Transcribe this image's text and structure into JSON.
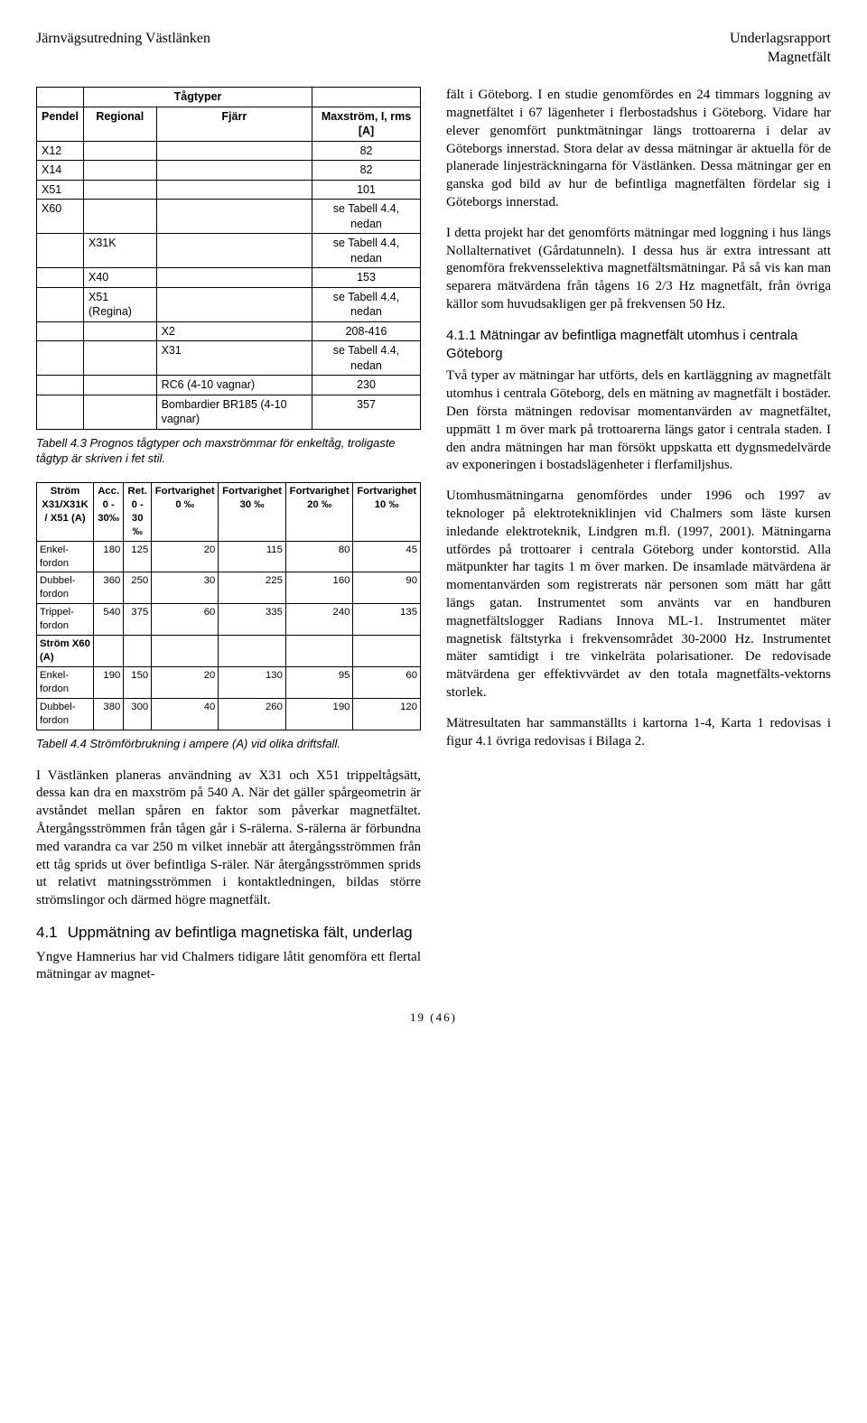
{
  "header": {
    "left": "Järnvägsutredning Västlänken",
    "right1": "Underlagsrapport",
    "right2": "Magnetfält"
  },
  "t43": {
    "title_row": [
      "",
      "Tågtyper",
      "",
      ""
    ],
    "head": [
      "Pendel",
      "Regional",
      "Fjärr",
      "Maxström, I, rms [A]"
    ],
    "rows": [
      [
        "X12",
        "",
        "",
        "82"
      ],
      [
        "X14",
        "",
        "",
        "82"
      ],
      [
        "X51",
        "",
        "",
        "101"
      ],
      [
        "X60",
        "",
        "",
        "se Tabell 4.4, nedan"
      ],
      [
        "",
        "X31K",
        "",
        "se Tabell 4.4, nedan"
      ],
      [
        "",
        "X40",
        "",
        "153"
      ],
      [
        "",
        "X51 (Regina)",
        "",
        "se Tabell 4.4, nedan"
      ],
      [
        "",
        "",
        "X2",
        "208-416"
      ],
      [
        "",
        "",
        "X31",
        "se Tabell 4.4, nedan"
      ],
      [
        "",
        "",
        "RC6 (4-10 vagnar)",
        "230"
      ],
      [
        "",
        "",
        "Bombardier BR185 (4-10 vagnar)",
        "357"
      ]
    ],
    "caption": "Tabell 4.3 Prognos tågtyper och maxströmmar för enkeltåg, troligaste tågtyp är skriven i fet stil."
  },
  "t44": {
    "head": [
      "Ström X31/X31K / X51 (A)",
      "Acc. 0 - 30‰",
      "Ret. 0 - 30 ‰",
      "Fortvarighet 0 ‰",
      "Fortvarighet 30 ‰",
      "Fortvarighet 20 ‰",
      "Fortvarighet 10 ‰"
    ],
    "rows": [
      [
        "Enkel-fordon",
        "180",
        "125",
        "20",
        "115",
        "80",
        "45"
      ],
      [
        "Dubbel-fordon",
        "360",
        "250",
        "30",
        "225",
        "160",
        "90"
      ],
      [
        "Trippel-fordon",
        "540",
        "375",
        "60",
        "335",
        "240",
        "135"
      ],
      [
        "Ström X60 (A)",
        "",
        "",
        "",
        "",
        "",
        ""
      ],
      [
        "Enkel-fordon",
        "190",
        "150",
        "20",
        "130",
        "95",
        "60"
      ],
      [
        "Dubbel-fordon",
        "380",
        "300",
        "40",
        "260",
        "190",
        "120"
      ]
    ],
    "caption": "Tabell 4.4 Strömförbrukning i ampere (A) vid olika driftsfall."
  },
  "leftParas": {
    "p1": "I Västlänken planeras användning av X31 och X51 trippeltågsätt, dessa kan dra en maxström på 540 A. När det gäller spårgeometrin är avståndet mellan spåren en faktor som påverkar magnetfältet. Återgångsströmmen från tågen går i S-rälerna. S-rälerna är förbundna med varandra ca var 250 m vilket innebär att återgångsströmmen från ett tåg sprids ut över befintliga S-räler. När återgångsströmmen sprids ut relativt matningsströmmen i kontaktledningen, bildas större strömslingor och därmed högre magnetfält.",
    "h2num": "4.1",
    "h2txt": "Uppmätning av befintliga magnetiska fält, underlag",
    "p2": "Yngve Hamnerius har vid Chalmers tidigare låtit genomföra ett flertal mätningar av magnet-"
  },
  "rightParas": {
    "p1": "fält i Göteborg. I en studie genomfördes en 24 timmars loggning av magnetfältet i 67 lägenheter i flerbostadshus i Göteborg. Vidare har elever genomfört punktmätningar längs trottoarerna i delar av Göteborgs innerstad. Stora delar av dessa mätningar är aktuella för de planerade linjesträckningarna för Västlänken. Dessa mätningar ger en ganska god bild av hur de befintliga magnetfälten fördelar sig i Göteborgs innerstad.",
    "p2": "I detta projekt har det genomförts mätningar med loggning i hus längs Nollalternativet (Gårdatunneln). I dessa hus är extra intressant att genomföra frekvensselektiva magnetfältsmätningar. På så vis kan man separera mätvärdena från tågens 16 2/3 Hz magnetfält, från övriga källor som huvudsakligen ger på frekvensen 50 Hz.",
    "h2": "4.1.1 Mätningar av befintliga magnetfält utomhus i centrala Göteborg",
    "p3": "Två typer av mätningar har utförts, dels en kartläggning av magnetfält utomhus i centrala Göteborg, dels en mätning av magnetfält i bostäder. Den första mätningen redovisar momentanvärden av magnetfältet, uppmätt 1 m över mark på trottoarerna längs gator i centrala staden. I den andra mätningen har man försökt uppskatta ett dygnsmedelvärde av exponeringen i bostadslägenheter i flerfamiljshus.",
    "p4": "Utomhusmätningarna genomfördes under 1996 och 1997 av teknologer på elektrotekniklinjen vid Chalmers som läste kursen inledande elektroteknik, Lindgren m.fl. (1997, 2001). Mätningarna utfördes på trottoarer i centrala Göteborg under kontorstid. Alla mätpunkter har tagits 1 m över marken. De insamlade mätvärdena är momentanvärden som registrerats när personen som mätt har gått längs gatan. Instrumentet som använts var en handburen magnetfältslogger Radians Innova ML-1. Instrumentet mäter magnetisk fältstyrka i frekvensområdet 30-2000 Hz. Instrumentet mäter samtidigt i tre vinkelräta polarisationer. De redovisade mätvärdena ger effektivvärdet av den totala magnetfälts-vektorns storlek.",
    "p5": "Mätresultaten har sammanställts i kartorna 1-4, Karta 1 redovisas i figur 4.1 övriga redovisas i Bilaga 2."
  },
  "footer": "19 (46)"
}
